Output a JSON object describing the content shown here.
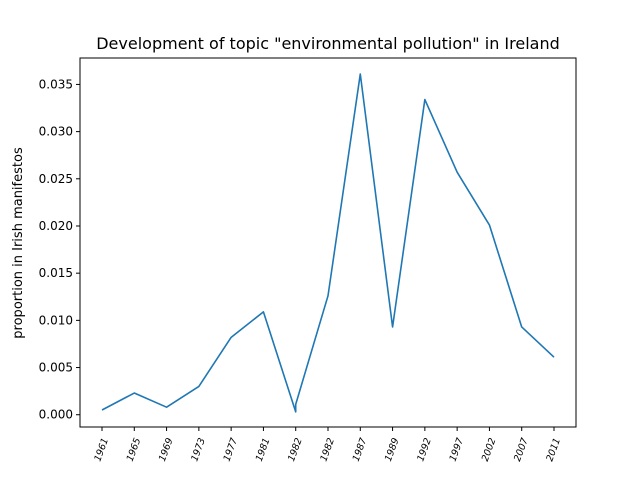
{
  "chart_data": {
    "type": "line",
    "title": "Development of topic \"environmental pollution\" in Ireland",
    "xlabel": "",
    "ylabel": "proportion in Irish manifestos",
    "categories": [
      "1961",
      "1965",
      "1969",
      "1973",
      "1977",
      "1981",
      "1982",
      "1982",
      "1987",
      "1989",
      "1992",
      "1997",
      "2002",
      "2007",
      "2011"
    ],
    "values": [
      0.0005,
      0.0023,
      0.0008,
      0.003,
      0.0082,
      0.0109,
      0.0003,
      0.0126,
      0.0361,
      0.0093,
      0.0334,
      0.0257,
      0.0201,
      0.0093,
      0.0061
    ],
    "extra_points": [
      {
        "x_index": 6,
        "value": 0.0011
      }
    ],
    "yticks": [
      "0.000",
      "0.005",
      "0.010",
      "0.015",
      "0.020",
      "0.025",
      "0.030",
      "0.035"
    ],
    "ylim": [
      -0.0013,
      0.0378
    ],
    "grid": false,
    "line_color": "#1f77b4"
  }
}
